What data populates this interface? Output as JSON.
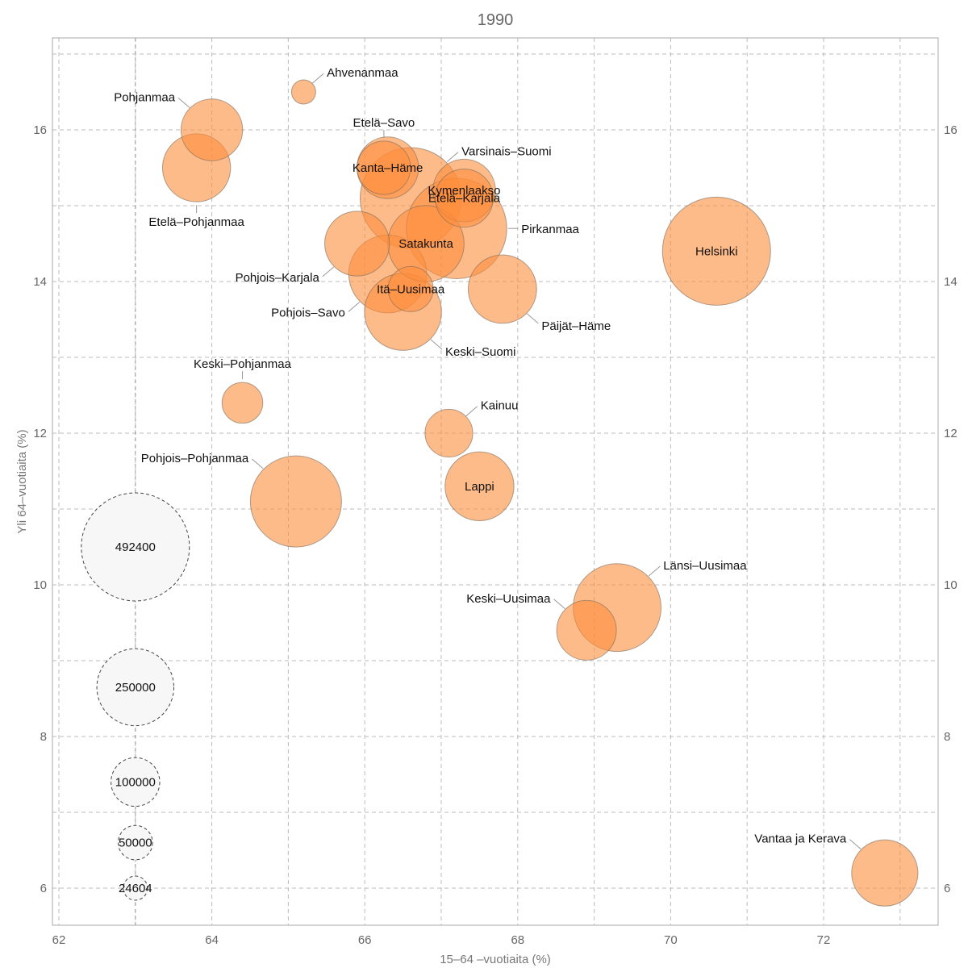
{
  "chart_data": {
    "type": "scatter",
    "subtype": "bubble",
    "title": "1990",
    "xlabel": "15–64 –vuotiaita (%)",
    "ylabel": "Yli 64–vuotiaita (%)",
    "xlim": [
      61.9,
      73.5
    ],
    "ylim": [
      5.5,
      17.2
    ],
    "xticks": [
      62,
      64,
      66,
      68,
      70,
      72
    ],
    "yticks": [
      6,
      8,
      10,
      12,
      14,
      16
    ],
    "x_gridlines": [
      62,
      63,
      64,
      65,
      66,
      67,
      68,
      69,
      70,
      71,
      72,
      73
    ],
    "y_gridlines": [
      6,
      7,
      8,
      9,
      10,
      11,
      12,
      13,
      14,
      15,
      16,
      17
    ],
    "grid": true,
    "secondary_y_axis": true,
    "bubble_color": "#fd8d3c",
    "bubble_fill_opacity": 0.6,
    "size_variable": "population",
    "points": [
      {
        "name": "Ahvenanmaa",
        "x": 65.2,
        "y": 16.5,
        "size": 24604,
        "label_pos": "top-right"
      },
      {
        "name": "Pohjanmaa",
        "x": 64.0,
        "y": 16.0,
        "size": 160000,
        "label_pos": "top-left"
      },
      {
        "name": "Etelä–Pohjanmaa",
        "x": 63.8,
        "y": 15.5,
        "size": 195000,
        "label_pos": "bottom"
      },
      {
        "name": "Etelä–Savo",
        "x": 66.25,
        "y": 15.5,
        "size": 120000,
        "label_pos": "top"
      },
      {
        "name": "Kanta–Häme",
        "x": 66.3,
        "y": 15.5,
        "size": 160000,
        "label_pos": "center"
      },
      {
        "name": "Varsinais–Suomi",
        "x": 66.6,
        "y": 15.1,
        "size": 430000,
        "label_pos": "top-right"
      },
      {
        "name": "Etelä–Karjala",
        "x": 67.3,
        "y": 15.1,
        "size": 142000,
        "label_pos": "center"
      },
      {
        "name": "Kymenlaakso",
        "x": 67.3,
        "y": 15.2,
        "size": 165000,
        "label_pos": "center"
      },
      {
        "name": "Pirkanmaa",
        "x": 67.2,
        "y": 14.7,
        "size": 425000,
        "label_pos": "right"
      },
      {
        "name": "Satakunta",
        "x": 66.8,
        "y": 14.5,
        "size": 245000,
        "label_pos": "center"
      },
      {
        "name": "Pohjois–Karjala",
        "x": 65.9,
        "y": 14.5,
        "size": 177000,
        "label_pos": "bottom-left"
      },
      {
        "name": "Pohjois–Savo",
        "x": 66.3,
        "y": 14.1,
        "size": 256000,
        "label_pos": "bottom-left"
      },
      {
        "name": "Itä–Uusimaa",
        "x": 66.6,
        "y": 13.9,
        "size": 86000,
        "label_pos": "center"
      },
      {
        "name": "Keski–Suomi",
        "x": 66.5,
        "y": 13.6,
        "size": 250000,
        "label_pos": "bottom-right"
      },
      {
        "name": "Päijät–Häme",
        "x": 67.8,
        "y": 13.9,
        "size": 197000,
        "label_pos": "bottom-right"
      },
      {
        "name": "Helsinki",
        "x": 70.6,
        "y": 14.4,
        "size": 492400,
        "label_pos": "center"
      },
      {
        "name": "Keski–Pohjanmaa",
        "x": 64.4,
        "y": 12.4,
        "size": 70000,
        "label_pos": "top"
      },
      {
        "name": "Kainuu",
        "x": 67.1,
        "y": 12.0,
        "size": 96000,
        "label_pos": "top-right"
      },
      {
        "name": "Lappi",
        "x": 67.5,
        "y": 11.3,
        "size": 200000,
        "label_pos": "center"
      },
      {
        "name": "Pohjois–Pohjanmaa",
        "x": 65.1,
        "y": 11.1,
        "size": 350000,
        "label_pos": "top-left"
      },
      {
        "name": "Länsi–Uusimaa",
        "x": 69.3,
        "y": 9.7,
        "size": 325000,
        "label_pos": "top-right"
      },
      {
        "name": "Keski–Uusimaa",
        "x": 68.9,
        "y": 9.4,
        "size": 150000,
        "label_pos": "top-left"
      },
      {
        "name": "Vantaa ja Kerava",
        "x": 72.8,
        "y": 6.2,
        "size": 185000,
        "label_pos": "top-left"
      }
    ],
    "size_legend": {
      "x": 63,
      "entries": [
        {
          "label": "492400",
          "value": 492400,
          "y": 10.5
        },
        {
          "label": "250000",
          "value": 250000,
          "y": 8.65
        },
        {
          "label": "100000",
          "value": 100000,
          "y": 7.4
        },
        {
          "label": "50000",
          "value": 50000,
          "y": 6.6
        },
        {
          "label": "24604",
          "value": 24604,
          "y": 6.0
        }
      ]
    }
  }
}
